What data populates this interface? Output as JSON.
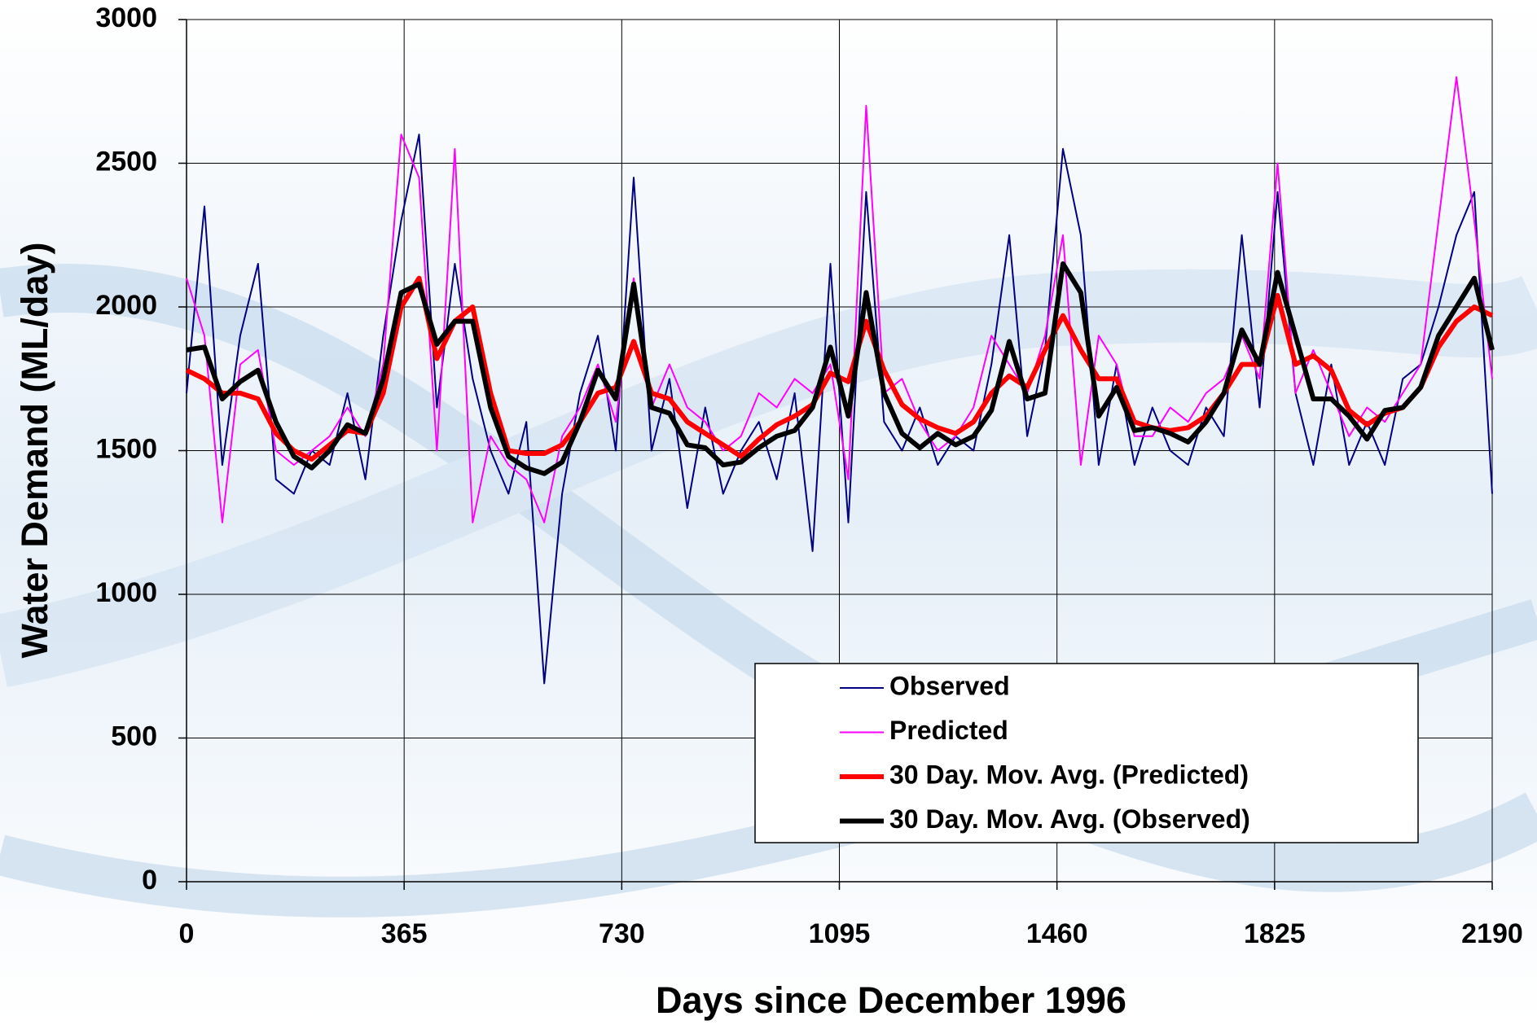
{
  "chart_data": {
    "type": "line",
    "xlabel": "Days since December 1996",
    "ylabel": "Water Demand (ML/day)",
    "x": [
      0,
      30,
      60,
      90,
      120,
      150,
      180,
      210,
      240,
      270,
      300,
      330,
      360,
      390,
      420,
      450,
      480,
      510,
      540,
      570,
      600,
      630,
      660,
      690,
      720,
      750,
      780,
      810,
      840,
      870,
      900,
      930,
      960,
      990,
      1020,
      1050,
      1080,
      1110,
      1140,
      1170,
      1200,
      1230,
      1260,
      1290,
      1320,
      1350,
      1380,
      1410,
      1440,
      1470,
      1500,
      1530,
      1560,
      1590,
      1620,
      1650,
      1680,
      1710,
      1740,
      1770,
      1800,
      1830,
      1860,
      1890,
      1920,
      1950,
      1980,
      2010,
      2040,
      2070,
      2100,
      2130,
      2160,
      2190
    ],
    "series": [
      {
        "name": "Observed",
        "color": "#000080",
        "width": 2,
        "values": [
          1700,
          2350,
          1450,
          1900,
          2150,
          1400,
          1350,
          1500,
          1450,
          1700,
          1400,
          1900,
          2300,
          2600,
          1650,
          2150,
          1750,
          1500,
          1350,
          1600,
          690,
          1350,
          1700,
          1900,
          1500,
          2450,
          1500,
          1750,
          1300,
          1650,
          1350,
          1500,
          1600,
          1400,
          1700,
          1150,
          2150,
          1250,
          2400,
          1600,
          1500,
          1650,
          1450,
          1550,
          1500,
          1800,
          2250,
          1550,
          1850,
          2550,
          2250,
          1450,
          1800,
          1450,
          1650,
          1500,
          1450,
          1650,
          1550,
          2250,
          1650,
          2400,
          1700,
          1450,
          1800,
          1450,
          1600,
          1450,
          1750,
          1800,
          2000,
          2250,
          2400,
          1350
        ]
      },
      {
        "name": "Predicted",
        "color": "#ff00ff",
        "width": 2,
        "values": [
          2100,
          1900,
          1250,
          1800,
          1850,
          1500,
          1450,
          1500,
          1550,
          1650,
          1550,
          1800,
          2600,
          2450,
          1500,
          2550,
          1250,
          1550,
          1450,
          1400,
          1250,
          1550,
          1650,
          1800,
          1600,
          2100,
          1650,
          1800,
          1650,
          1600,
          1500,
          1550,
          1700,
          1650,
          1750,
          1700,
          1800,
          1400,
          2700,
          1700,
          1750,
          1600,
          1500,
          1550,
          1650,
          1900,
          1800,
          1700,
          1900,
          2250,
          1450,
          1900,
          1800,
          1550,
          1550,
          1650,
          1600,
          1700,
          1750,
          1900,
          1750,
          2500,
          1700,
          1850,
          1700,
          1550,
          1650,
          1600,
          1700,
          1800,
          2300,
          2800,
          2300,
          1750
        ]
      },
      {
        "name": "30 Day. Mov. Avg. (Predicted)",
        "color": "#ff0000",
        "width": 6,
        "values": [
          1780,
          1750,
          1700,
          1700,
          1680,
          1560,
          1500,
          1470,
          1520,
          1570,
          1560,
          1700,
          2000,
          2100,
          1820,
          1950,
          2000,
          1700,
          1500,
          1490,
          1490,
          1520,
          1600,
          1700,
          1720,
          1880,
          1700,
          1680,
          1600,
          1560,
          1520,
          1480,
          1540,
          1590,
          1620,
          1660,
          1770,
          1740,
          1950,
          1780,
          1660,
          1610,
          1580,
          1560,
          1600,
          1700,
          1760,
          1720,
          1850,
          1970,
          1850,
          1750,
          1750,
          1600,
          1580,
          1570,
          1580,
          1620,
          1700,
          1800,
          1800,
          2040,
          1800,
          1830,
          1780,
          1640,
          1590,
          1630,
          1650,
          1720,
          1860,
          1950,
          2000,
          1970
        ]
      },
      {
        "name": "30 Day. Mov. Avg. (Observed)",
        "color": "#000000",
        "width": 6,
        "values": [
          1850,
          1860,
          1680,
          1740,
          1780,
          1600,
          1480,
          1440,
          1500,
          1590,
          1560,
          1750,
          2050,
          2080,
          1870,
          1950,
          1950,
          1650,
          1480,
          1440,
          1420,
          1460,
          1600,
          1780,
          1680,
          2080,
          1650,
          1630,
          1520,
          1510,
          1450,
          1460,
          1510,
          1550,
          1570,
          1650,
          1860,
          1620,
          2050,
          1700,
          1560,
          1510,
          1560,
          1520,
          1550,
          1640,
          1880,
          1680,
          1700,
          2150,
          2050,
          1620,
          1720,
          1570,
          1580,
          1560,
          1530,
          1600,
          1700,
          1920,
          1800,
          2120,
          1900,
          1680,
          1680,
          1620,
          1540,
          1640,
          1650,
          1720,
          1900,
          2000,
          2100,
          1850
        ]
      }
    ],
    "xlim": [
      0,
      2190
    ],
    "xticks": [
      0,
      365,
      730,
      1095,
      1460,
      1825,
      2190
    ],
    "ylim": [
      0,
      3000
    ],
    "yticks": [
      0,
      500,
      1000,
      1500,
      2000,
      2500,
      3000
    ],
    "grid": true,
    "legend": "lower right"
  }
}
